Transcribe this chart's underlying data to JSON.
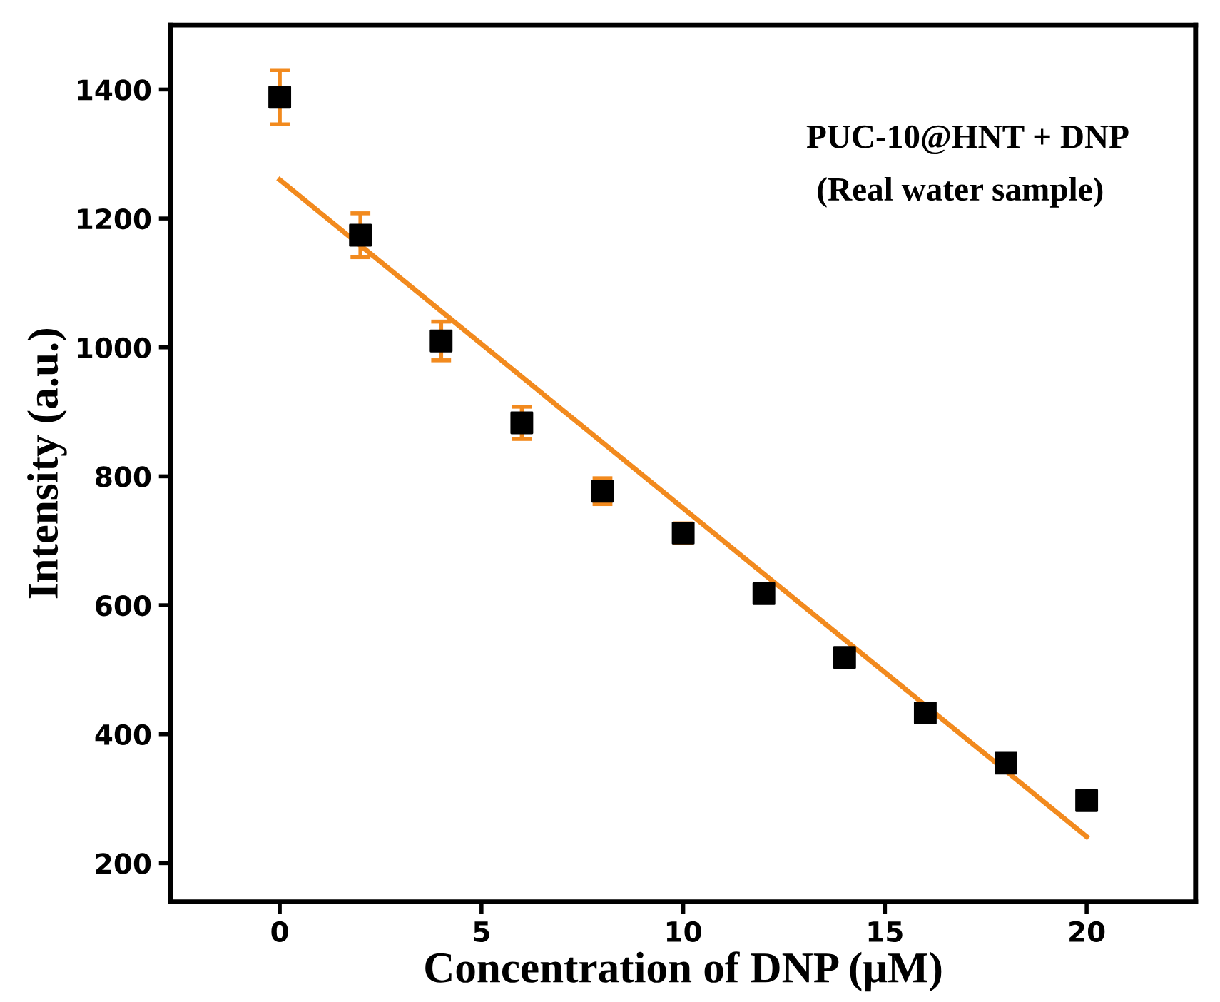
{
  "chart_data": {
    "type": "scatter",
    "xlabel": "Concentration of DNP (μM)",
    "ylabel": "Intensity (a.u.)",
    "annotations": [
      "PUC-10@HNT + DNP",
      "(Real water sample)"
    ],
    "xlim": [
      -2.7,
      22.7
    ],
    "ylim": [
      140,
      1500
    ],
    "xticks": [
      0,
      5,
      10,
      15,
      20
    ],
    "yticks": [
      200,
      400,
      600,
      800,
      1000,
      1200,
      1400
    ],
    "grid": false,
    "series": [
      {
        "marker": "square",
        "color": "#000000",
        "x": [
          0,
          2,
          4,
          6,
          8,
          10,
          12,
          14,
          16,
          18,
          20
        ],
        "values": [
          1388,
          1174,
          1010,
          883,
          777,
          712,
          618,
          519,
          433,
          355,
          297
        ],
        "errors": [
          42,
          34,
          30,
          25,
          20,
          15,
          null,
          null,
          null,
          null,
          null
        ]
      },
      {
        "type": "line",
        "color": "#f28a1e",
        "x": [
          0,
          20
        ],
        "values": [
          1260,
          241
        ]
      }
    ]
  }
}
